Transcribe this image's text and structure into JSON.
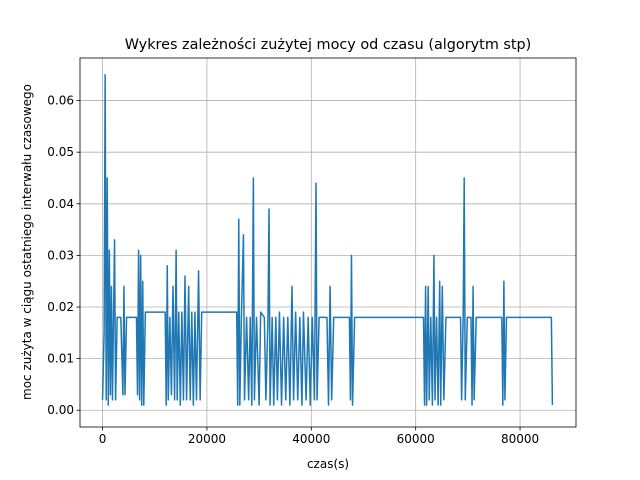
{
  "chart_data": {
    "type": "line",
    "title": "Wykres zależności zużytej mocy od czasu (algorytm stp)",
    "xlabel": "czas(s)",
    "ylabel": "moc zużyta w ciągu ostatniego interwału czasowego",
    "color": "#1f77b4",
    "grid": true,
    "xlim": [
      -4320,
      90720
    ],
    "ylim": [
      -0.00325,
      0.06825
    ],
    "xticks": [
      0,
      20000,
      40000,
      60000,
      80000
    ],
    "yticks": [
      {
        "value": 0,
        "label": "0.00"
      },
      0.01,
      0.02,
      0.03,
      0.04,
      0.05,
      0.06
    ],
    "x": [
      0,
      300,
      500,
      700,
      900,
      1100,
      1300,
      1500,
      1700,
      1900,
      2100,
      2300,
      2500,
      2800,
      3500,
      3900,
      4100,
      4300,
      4600,
      6500,
      6700,
      6900,
      7100,
      7300,
      7500,
      7700,
      7900,
      8200,
      12000,
      12200,
      12400,
      12600,
      12900,
      13200,
      13500,
      13800,
      14100,
      14300,
      14600,
      14900,
      15200,
      15500,
      15800,
      16100,
      16500,
      16800,
      17100,
      17400,
      17700,
      18000,
      18400,
      18700,
      19000,
      25700,
      25900,
      26100,
      26300,
      26600,
      27000,
      27200,
      27600,
      28000,
      28300,
      28600,
      28900,
      29100,
      29500,
      30000,
      30300,
      31000,
      31300,
      31700,
      31900,
      32100,
      32500,
      32800,
      33200,
      33500,
      33900,
      34300,
      34700,
      35100,
      35500,
      35900,
      36300,
      36600,
      37000,
      37400,
      37800,
      38200,
      38500,
      39000,
      39400,
      39800,
      40200,
      40600,
      40900,
      41100,
      41500,
      43000,
      43300,
      43600,
      43900,
      44300,
      47300,
      47500,
      47700,
      47900,
      48300,
      61500,
      61700,
      61900,
      62100,
      62400,
      62600,
      62900,
      63200,
      63500,
      63700,
      64000,
      64300,
      64600,
      64800,
      65100,
      65400,
      65800,
      68600,
      68800,
      69100,
      69300,
      69500,
      69900,
      70600,
      70800,
      71000,
      71200,
      71600,
      76500,
      76700,
      76900,
      77100,
      77400,
      86000,
      86200
    ],
    "values": [
      0.002,
      0.015,
      0.065,
      0.002,
      0.045,
      0.001,
      0.031,
      0.003,
      0.024,
      0.002,
      0.018,
      0.033,
      0.002,
      0.018,
      0.018,
      0.003,
      0.024,
      0.003,
      0.018,
      0.018,
      0.003,
      0.031,
      0.002,
      0.03,
      0.001,
      0.025,
      0.001,
      0.019,
      0.019,
      0.001,
      0.028,
      0.002,
      0.018,
      0.003,
      0.024,
      0.002,
      0.031,
      0.002,
      0.019,
      0.001,
      0.019,
      0.002,
      0.026,
      0.002,
      0.024,
      0.002,
      0.019,
      0.001,
      0.019,
      0.002,
      0.027,
      0.002,
      0.019,
      0.019,
      0.001,
      0.037,
      0.001,
      0.018,
      0.034,
      0.002,
      0.018,
      0.002,
      0.018,
      0.001,
      0.045,
      0.002,
      0.018,
      0.001,
      0.019,
      0.018,
      0.002,
      0.018,
      0.039,
      0.001,
      0.018,
      0.001,
      0.018,
      0.002,
      0.019,
      0.001,
      0.018,
      0.002,
      0.018,
      0.001,
      0.024,
      0.002,
      0.019,
      0.002,
      0.018,
      0.001,
      0.019,
      0.002,
      0.018,
      0.001,
      0.018,
      0.002,
      0.044,
      0.002,
      0.018,
      0.018,
      0.001,
      0.024,
      0.002,
      0.018,
      0.018,
      0.002,
      0.03,
      0.001,
      0.018,
      0.018,
      0.001,
      0.024,
      0.001,
      0.024,
      0.002,
      0.018,
      0.001,
      0.03,
      0.002,
      0.018,
      0.001,
      0.025,
      0.001,
      0.024,
      0.002,
      0.018,
      0.018,
      0.002,
      0.018,
      0.045,
      0.002,
      0.018,
      0.018,
      0.001,
      0.024,
      0.002,
      0.018,
      0.018,
      0.001,
      0.025,
      0.002,
      0.018,
      0.018,
      0.001
    ]
  }
}
